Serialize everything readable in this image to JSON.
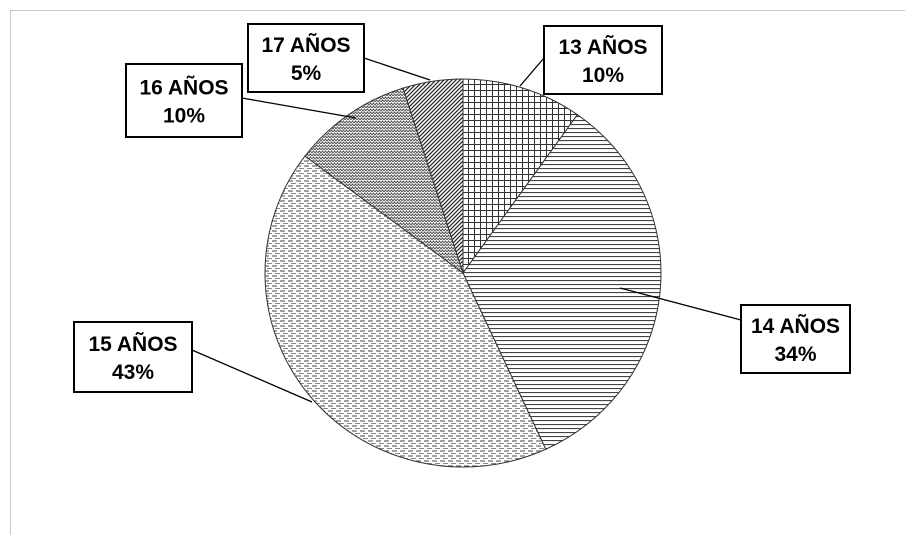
{
  "chart_data": {
    "type": "pie",
    "title": "",
    "slices": [
      {
        "category": "13 AÑOS",
        "percent_label": "10%",
        "value": 10,
        "pattern": "grid"
      },
      {
        "category": "14 AÑOS",
        "percent_label": "34%",
        "value": 34,
        "pattern": "horizontal"
      },
      {
        "category": "15 AÑOS",
        "percent_label": "43%",
        "value": 43,
        "pattern": "dashed-horizontal"
      },
      {
        "category": "16 AÑOS",
        "percent_label": "10%",
        "value": 10,
        "pattern": "zigzag"
      },
      {
        "category": "17 AÑOS",
        "percent_label": "5%",
        "value": 5,
        "pattern": "diagonal"
      }
    ],
    "start": "top",
    "direction": "clockwise",
    "colors": {
      "line": "#333333",
      "fill": "#ffffff",
      "label_border": "#000000"
    }
  }
}
